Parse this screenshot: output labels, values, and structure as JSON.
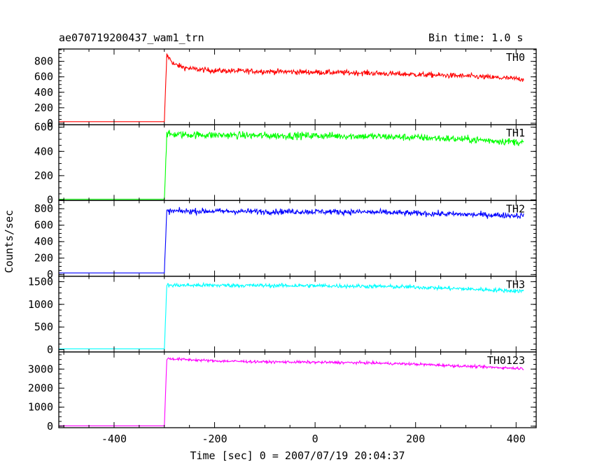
{
  "header": {
    "title": "ae070719200437_wam1_trn",
    "bin_time": "Bin time: 1.0 s"
  },
  "chart_data": {
    "type": "line",
    "title": "ae070719200437_wam1_trn",
    "xlabel": "Time [sec] 0 = 2007/07/19 20:04:37",
    "ylabel": "Counts/sec",
    "xlim": [
      -510,
      440
    ],
    "x_ticks": [
      -400,
      -200,
      0,
      200,
      400
    ],
    "grid": false,
    "onset_time": -300,
    "data_end_time": 415,
    "panels": [
      {
        "name": "TH0",
        "color": "#ff0000",
        "ylim": [
          -20,
          960
        ],
        "yticks": [
          0,
          200,
          400,
          600,
          800
        ],
        "x": [
          -510,
          -301,
          -300,
          -295,
          -280,
          -260,
          -240,
          -200,
          -100,
          0,
          100,
          200,
          300,
          415
        ],
        "y": [
          20,
          20,
          20,
          880,
          760,
          720,
          700,
          680,
          670,
          660,
          650,
          630,
          610,
          570
        ],
        "noise": 35
      },
      {
        "name": "TH1",
        "color": "#00ff00",
        "ylim": [
          -5,
          620
        ],
        "yticks": [
          0,
          200,
          400,
          600
        ],
        "x": [
          -510,
          -301,
          -300,
          -295,
          -200,
          -100,
          0,
          100,
          200,
          300,
          415
        ],
        "y": [
          5,
          5,
          5,
          540,
          535,
          530,
          530,
          525,
          515,
          500,
          475
        ],
        "noise": 30
      },
      {
        "name": "TH2",
        "color": "#0000ff",
        "ylim": [
          -20,
          900
        ],
        "yticks": [
          0,
          200,
          400,
          600,
          800
        ],
        "x": [
          -510,
          -301,
          -300,
          -295,
          -200,
          -100,
          0,
          100,
          200,
          300,
          415
        ],
        "y": [
          20,
          20,
          20,
          770,
          770,
          765,
          765,
          760,
          745,
          730,
          715
        ],
        "noise": 35
      },
      {
        "name": "TH3",
        "color": "#00ffff",
        "ylim": [
          -50,
          1620
        ],
        "yticks": [
          0,
          500,
          1000,
          1500
        ],
        "x": [
          -510,
          -301,
          -300,
          -295,
          -200,
          -100,
          0,
          100,
          200,
          300,
          415
        ],
        "y": [
          20,
          20,
          20,
          1420,
          1420,
          1415,
          1410,
          1400,
          1380,
          1340,
          1290
        ],
        "noise": 45
      },
      {
        "name": "TH0123",
        "color": "#ff00ff",
        "ylim": [
          -80,
          3900
        ],
        "yticks": [
          0,
          1000,
          2000,
          3000
        ],
        "x": [
          -510,
          -301,
          -300,
          -295,
          -200,
          -100,
          0,
          100,
          200,
          300,
          415
        ],
        "y": [
          20,
          20,
          20,
          3550,
          3430,
          3380,
          3360,
          3330,
          3260,
          3150,
          3030
        ],
        "noise": 70
      }
    ]
  }
}
